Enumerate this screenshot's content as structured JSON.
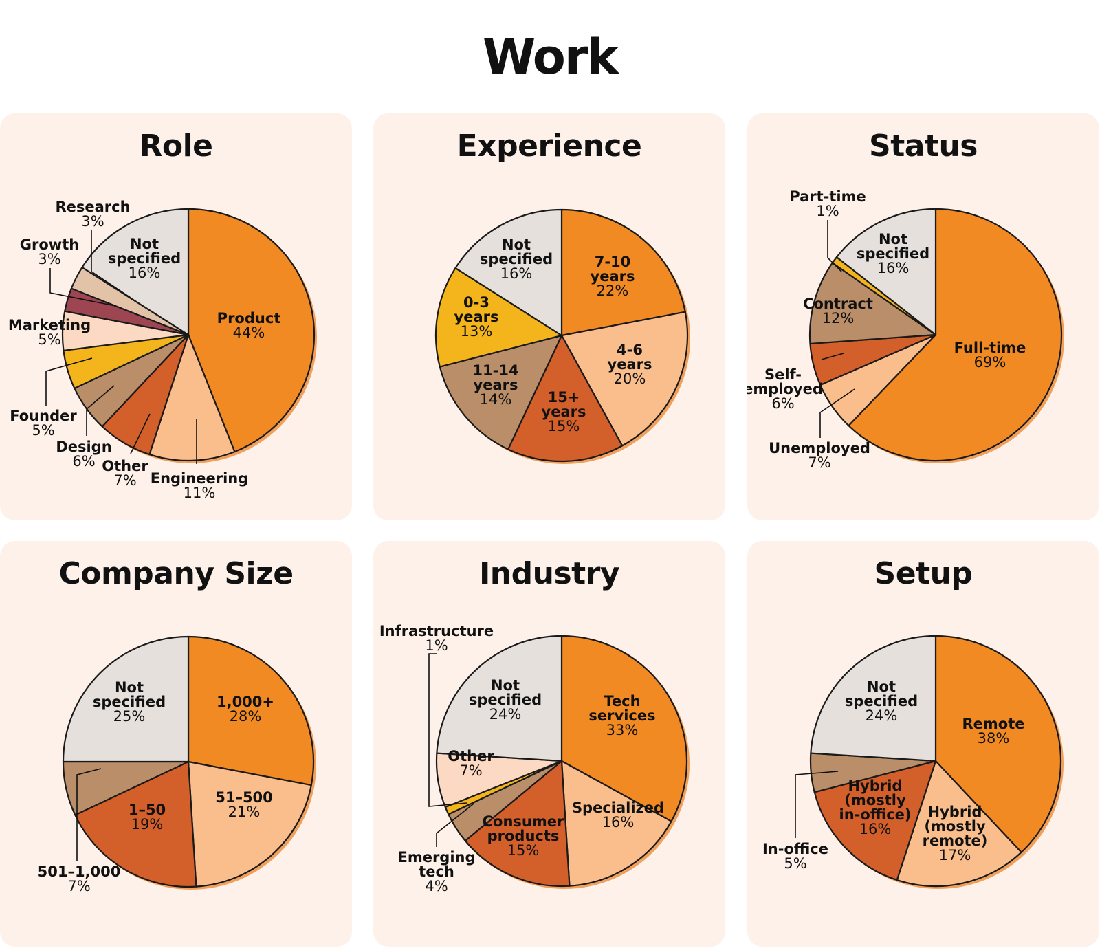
{
  "title": "Work",
  "colors": {
    "orange": "#f28a24",
    "peach": "#f9be8c",
    "light_peach": "#fcd9c2",
    "dark_orange": "#d35f2a",
    "tan": "#b98e69",
    "gold": "#f4b41c",
    "maroon": "#9e4552",
    "gray": "#e5e0dc",
    "panel_bg": "#fdf1ea"
  },
  "chart_data": [
    {
      "type": "pie",
      "title": "Role",
      "slices": [
        {
          "label": "Product",
          "value": 44,
          "display": "44%",
          "color": "#f28a24"
        },
        {
          "label": "Engineering",
          "value": 11,
          "display": "11%",
          "color": "#f9be8c"
        },
        {
          "label": "Other",
          "value": 7,
          "display": "7%",
          "color": "#d35f2a"
        },
        {
          "label": "Design",
          "value": 6,
          "display": "6%",
          "color": "#b98e69"
        },
        {
          "label": "Founder",
          "value": 5,
          "display": "5%",
          "color": "#f4b41c"
        },
        {
          "label": "Marketing",
          "value": 5,
          "display": "5%",
          "color": "#fcd9c2"
        },
        {
          "label": "Growth",
          "value": 3,
          "display": "3%",
          "color": "#9e4552"
        },
        {
          "label": "Research",
          "value": 3,
          "display": "3%",
          "color": "#e3c3a8"
        },
        {
          "label": "Not specified",
          "value": 16,
          "display": "16%",
          "color": "#e5e0dc"
        }
      ]
    },
    {
      "type": "pie",
      "title": "Experience",
      "slices": [
        {
          "label": "7-10 years",
          "value": 22,
          "display": "22%",
          "color": "#f28a24"
        },
        {
          "label": "4-6 years",
          "value": 20,
          "display": "20%",
          "color": "#f9be8c"
        },
        {
          "label": "15+ years",
          "value": 15,
          "display": "15%",
          "color": "#d35f2a"
        },
        {
          "label": "11-14 years",
          "value": 14,
          "display": "14%",
          "color": "#b98e69"
        },
        {
          "label": "0-3 years",
          "value": 13,
          "display": "13%",
          "color": "#f4b41c"
        },
        {
          "label": "Not specified",
          "value": 16,
          "display": "16%",
          "color": "#e5e0dc"
        }
      ]
    },
    {
      "type": "pie",
      "title": "Status",
      "slices": [
        {
          "label": "Full-time",
          "value": 69,
          "display": "69%",
          "color": "#f28a24"
        },
        {
          "label": "Unemployed",
          "value": 7,
          "display": "7%",
          "color": "#f9be8c"
        },
        {
          "label": "Self-employed",
          "value": 6,
          "display": "6%",
          "color": "#d35f2a"
        },
        {
          "label": "Contract",
          "value": 12,
          "display": "12%",
          "color": "#b98e69"
        },
        {
          "label": "Part-time",
          "value": 1,
          "display": "1%",
          "color": "#f4b41c"
        },
        {
          "label": "Not specified",
          "value": 16,
          "display": "16%",
          "color": "#e5e0dc"
        }
      ]
    },
    {
      "type": "pie",
      "title": "Company Size",
      "slices": [
        {
          "label": "1,000+",
          "value": 28,
          "display": "28%",
          "color": "#f28a24"
        },
        {
          "label": "51–500",
          "value": 21,
          "display": "21%",
          "color": "#f9be8c"
        },
        {
          "label": "1–50",
          "value": 19,
          "display": "19%",
          "color": "#d35f2a"
        },
        {
          "label": "501–1,000",
          "value": 7,
          "display": "7%",
          "color": "#b98e69"
        },
        {
          "label": "Not specified",
          "value": 25,
          "display": "25%",
          "color": "#e5e0dc"
        }
      ]
    },
    {
      "type": "pie",
      "title": "Industry",
      "slices": [
        {
          "label": "Tech services",
          "value": 33,
          "display": "33%",
          "color": "#f28a24"
        },
        {
          "label": "Specialized",
          "value": 16,
          "display": "16%",
          "color": "#f9be8c"
        },
        {
          "label": "Consumer products",
          "value": 15,
          "display": "15%",
          "color": "#d35f2a"
        },
        {
          "label": "Emerging tech",
          "value": 4,
          "display": "4%",
          "color": "#b98e69"
        },
        {
          "label": "Infrastructure",
          "value": 1,
          "display": "1%",
          "color": "#f4b41c"
        },
        {
          "label": "Other",
          "value": 7,
          "display": "7%",
          "color": "#fcd9c2"
        },
        {
          "label": "Not specified",
          "value": 24,
          "display": "24%",
          "color": "#e5e0dc"
        }
      ]
    },
    {
      "type": "pie",
      "title": "Setup",
      "slices": [
        {
          "label": "Remote",
          "value": 38,
          "display": "38%",
          "color": "#f28a24"
        },
        {
          "label": "Hybrid (mostly remote)",
          "value": 17,
          "display": "17%",
          "color": "#f9be8c"
        },
        {
          "label": "Hybrid (mostly in-office)",
          "value": 16,
          "display": "16%",
          "color": "#d35f2a"
        },
        {
          "label": "In-office",
          "value": 5,
          "display": "5%",
          "color": "#b98e69"
        },
        {
          "label": "Not specified",
          "value": 24,
          "display": "24%",
          "color": "#e5e0dc"
        }
      ]
    }
  ]
}
